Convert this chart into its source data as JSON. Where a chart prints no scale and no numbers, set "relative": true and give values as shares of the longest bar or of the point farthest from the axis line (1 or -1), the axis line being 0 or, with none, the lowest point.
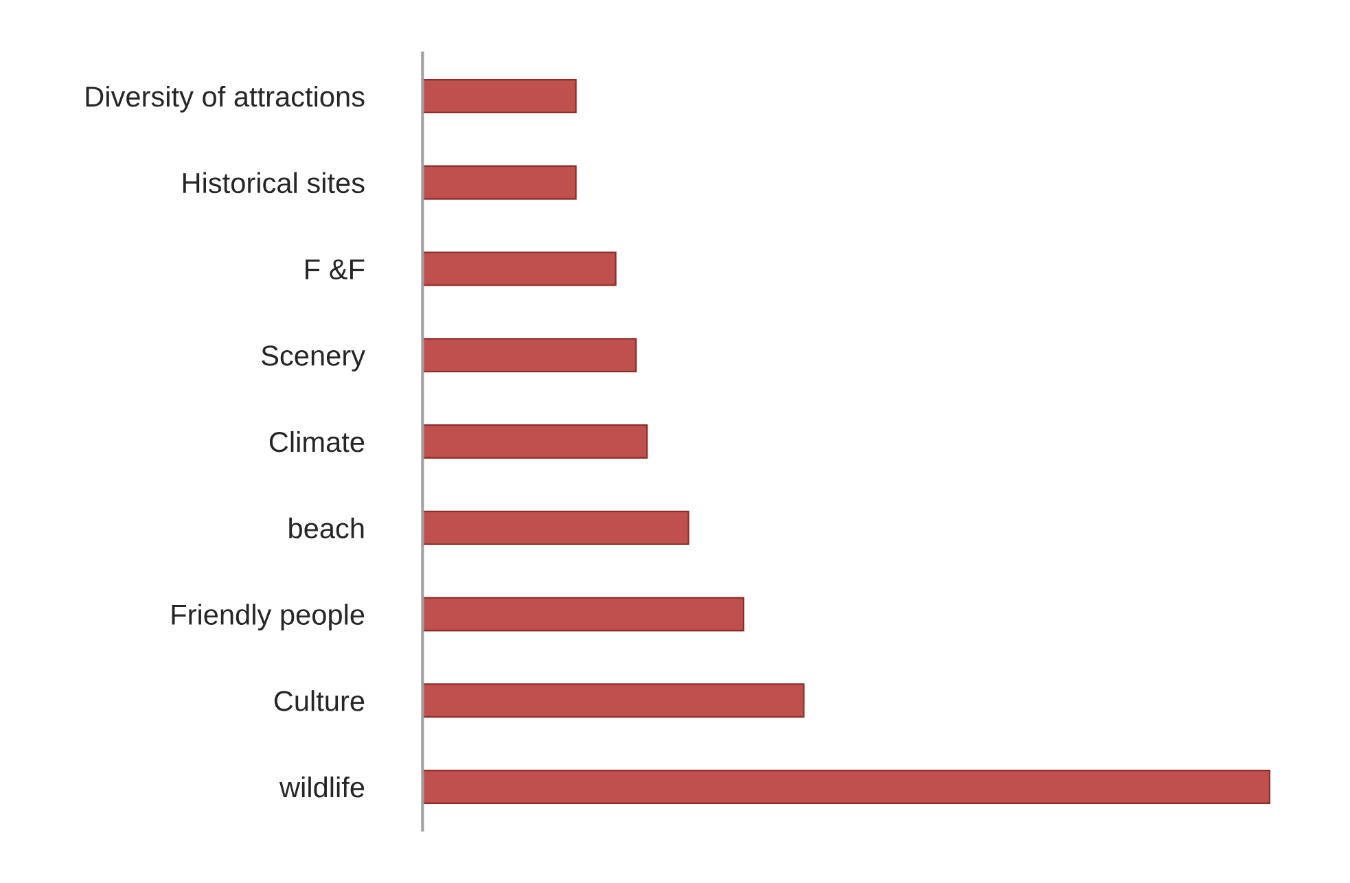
{
  "chart_data": {
    "type": "bar",
    "orientation": "horizontal",
    "relative": true,
    "categories": [
      "Diversity of attractions",
      "Historical sites",
      "F &F",
      "Scenery",
      "Climate",
      "beach",
      "Friendly people",
      "Culture",
      "wildlife"
    ],
    "values": [
      0.181,
      0.181,
      0.228,
      0.252,
      0.265,
      0.314,
      0.379,
      0.45,
      1
    ],
    "color": "#c0504d",
    "grid": false,
    "legend": false
  }
}
